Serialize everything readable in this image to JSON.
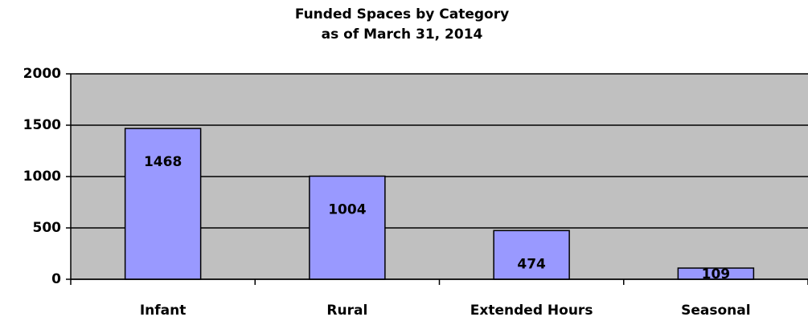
{
  "chart_data": {
    "type": "bar",
    "title": "Funded Spaces by Category",
    "subtitle": "as of March 31, 2014",
    "categories": [
      "Infant",
      "Rural",
      "Extended Hours",
      "Seasonal"
    ],
    "values": [
      1468,
      1004,
      474,
      109
    ],
    "color": "#9999ff",
    "ylim": [
      0,
      2000
    ],
    "yticks": [
      0,
      500,
      1000,
      1500,
      2000
    ],
    "grid": true
  }
}
